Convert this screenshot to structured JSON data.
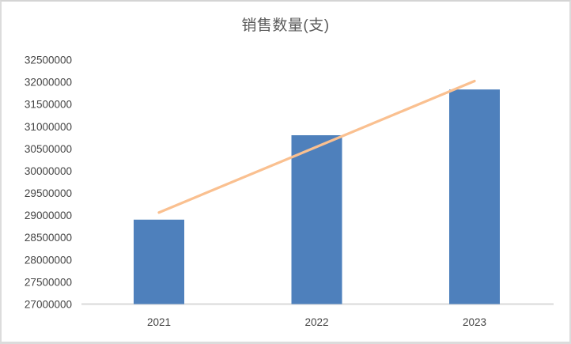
{
  "page": {
    "background_color": "#ffffff",
    "frame_border_color": "#d9d9d9"
  },
  "chart_data": {
    "type": "bar",
    "title": "销售数量(支)",
    "categories": [
      "2021",
      "2022",
      "2023"
    ],
    "values": [
      28900000,
      30800000,
      31830000
    ],
    "bar_color": "#4e80bc",
    "trendline": {
      "shape": "linear",
      "color": "#fac090",
      "start_category": "2021",
      "end_category": "2023",
      "start_value": 29060000,
      "end_value": 32020000
    },
    "xlabel": "",
    "ylabel": "",
    "ylim": [
      27000000,
      32500000
    ],
    "ytick_step": 500000,
    "yticks": [
      27000000,
      27500000,
      28000000,
      28500000,
      29000000,
      29500000,
      30000000,
      30500000,
      31000000,
      31500000,
      32000000,
      32500000
    ],
    "grid": false,
    "legend_position": "none",
    "axis_line_color": "#d9d9d9",
    "tick_label_color": "#444444",
    "title_color": "#595959"
  }
}
